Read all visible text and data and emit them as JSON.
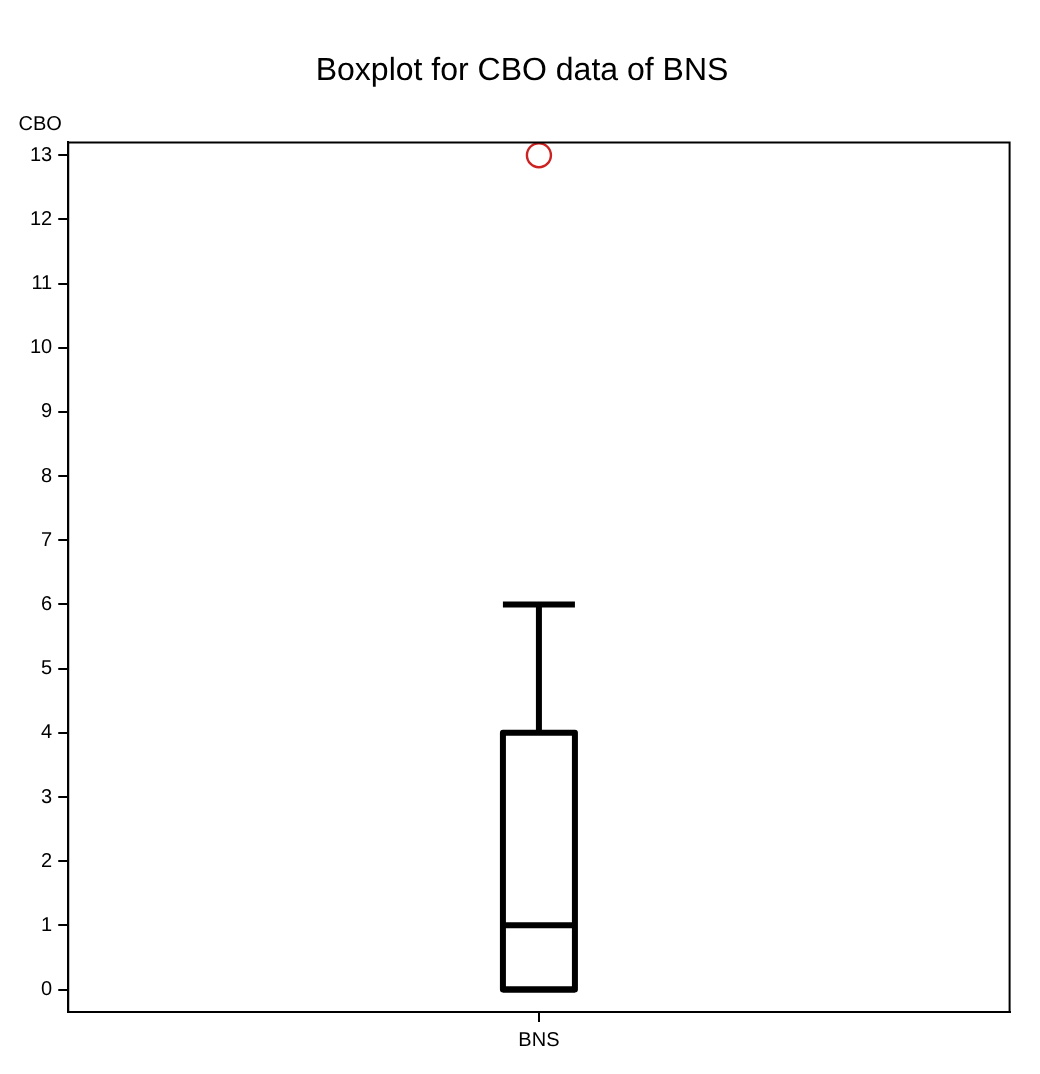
{
  "chart_data": {
    "type": "box",
    "title": "Boxplot for CBO data of BNS",
    "ylabel": "CBO",
    "categories": [
      "BNS"
    ],
    "boxes": [
      {
        "low": 0,
        "q1": 0,
        "median": 1,
        "q3": 4,
        "high": 6
      }
    ],
    "color": "#000000",
    "series": [
      {
        "type": "scatter",
        "color": "#cc2222",
        "x": [
          "BNS"
        ],
        "values": [
          13
        ]
      }
    ],
    "ylim": [
      -0.35,
      13.2
    ],
    "yticks": [
      0,
      1,
      2,
      3,
      4,
      5,
      6,
      7,
      8,
      9,
      10,
      11,
      12,
      13
    ],
    "grid": false,
    "legend": false,
    "marker": "circle"
  }
}
